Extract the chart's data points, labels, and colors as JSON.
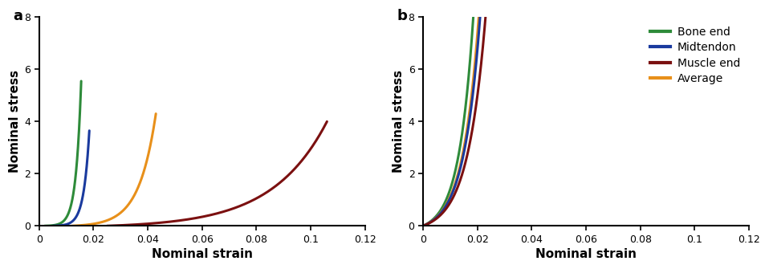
{
  "panel_a": {
    "curves": [
      {
        "label": "Bone end",
        "color": "#2e8b3a",
        "x_start": 0.002,
        "x_end": 0.0155,
        "exponent": 7.0,
        "max_stress": 5.55
      },
      {
        "label": "Midtendon",
        "color": "#1a3a9e",
        "x_start": 0.005,
        "x_end": 0.0185,
        "exponent": 6.5,
        "max_stress": 3.65
      },
      {
        "label": "Average",
        "color": "#e8901a",
        "x_start": 0.012,
        "x_end": 0.043,
        "exponent": 5.0,
        "max_stress": 4.3
      },
      {
        "label": "Muscle end",
        "color": "#7b1010",
        "x_start": 0.025,
        "x_end": 0.106,
        "exponent": 4.0,
        "max_stress": 4.0
      }
    ],
    "xlim": [
      0,
      0.12
    ],
    "ylim": [
      0,
      8
    ],
    "xlabel": "Nominal strain",
    "ylabel": "Nominal stress",
    "panel_label": "a"
  },
  "panel_b": {
    "curves": [
      {
        "label": "Bone end",
        "color": "#2e8b3a",
        "x_start": 0.0,
        "x_end": 0.0185,
        "exponent": 3.5,
        "max_stress": 8.0
      },
      {
        "label": "Average",
        "color": "#e8901a",
        "x_start": 0.0,
        "x_end": 0.0205,
        "exponent": 3.5,
        "max_stress": 8.0
      },
      {
        "label": "Midtendon",
        "color": "#1a3a9e",
        "x_start": 0.0,
        "x_end": 0.021,
        "exponent": 3.5,
        "max_stress": 8.0
      },
      {
        "label": "Muscle end",
        "color": "#7b1010",
        "x_start": 0.0,
        "x_end": 0.023,
        "exponent": 3.5,
        "max_stress": 8.0
      }
    ],
    "xlim": [
      0,
      0.12
    ],
    "ylim": [
      0,
      8
    ],
    "xlabel": "Nominal strain",
    "ylabel": "Nominal stress",
    "panel_label": "b"
  },
  "legend_labels": [
    "Bone end",
    "Midtendon",
    "Muscle end",
    "Average"
  ],
  "legend_colors": [
    "#2e8b3a",
    "#1a3a9e",
    "#7b1010",
    "#e8901a"
  ],
  "xticks": [
    0,
    0.02,
    0.04,
    0.06,
    0.08,
    0.1,
    0.12
  ],
  "xtick_labels": [
    "0",
    "0.02",
    "0.04",
    "0.06",
    "0.08",
    "0.1",
    "0.12"
  ],
  "yticks": [
    0,
    2,
    4,
    6,
    8
  ],
  "tick_label_fontsize": 9,
  "axis_label_fontsize": 11,
  "panel_label_fontsize": 13,
  "legend_fontsize": 10,
  "line_width": 2.2,
  "bg_color": "#ffffff"
}
